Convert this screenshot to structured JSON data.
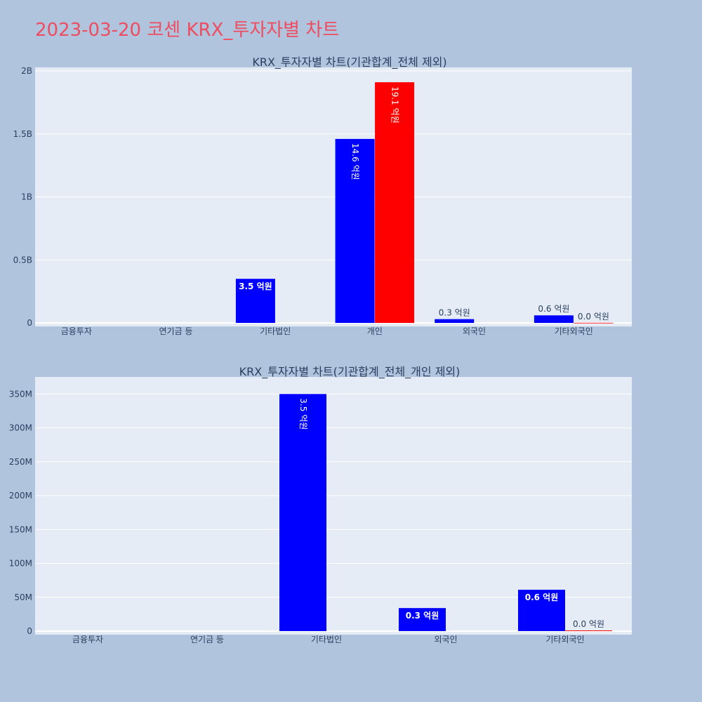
{
  "page": {
    "title": "2023-03-20 코센 KRX_투자자별 차트"
  },
  "colors": {
    "background": "#b0c4de",
    "plot_bg": "#e5ecf6",
    "grid": "#ffffff",
    "buy": "#0000ff",
    "sell": "#ff0000",
    "title": "#ef4d5f",
    "text": "#2a3f5f"
  },
  "chart_data": [
    {
      "type": "bar",
      "title": "KRX_투자자별 차트(기관합계_전체 제외)",
      "categories": [
        "금융투자",
        "연기금 등",
        "기타법인",
        "개인",
        "외국인",
        "기타외국인"
      ],
      "ylim": [
        0,
        2000000000
      ],
      "yticks": [
        0,
        500000000,
        1000000000,
        1500000000,
        2000000000
      ],
      "yticklabels": [
        "0",
        "0.5B",
        "1B",
        "1.5B",
        "2B"
      ],
      "grid": true,
      "series": [
        {
          "color": "#0000ff",
          "values": [
            0,
            0,
            350000000,
            1460000000,
            30000000,
            60000000
          ],
          "labels": [
            "",
            "",
            "3.5 억원",
            "14.6 억원",
            "0.3 억원",
            "0.6 억원"
          ]
        },
        {
          "color": "#ff0000",
          "values": [
            0,
            0,
            0,
            1910000000,
            0,
            1000000
          ],
          "labels": [
            "",
            "",
            "",
            "19.1 억원",
            "",
            "0.0 억원"
          ]
        }
      ]
    },
    {
      "type": "bar",
      "title": "KRX_투자자별 차트(기관합계_전체_개인 제외)",
      "categories": [
        "금융투자",
        "연기금 등",
        "기타법인",
        "외국인",
        "기타외국인"
      ],
      "ylim": [
        0,
        370000000
      ],
      "yticks": [
        0,
        50000000,
        100000000,
        150000000,
        200000000,
        250000000,
        300000000,
        350000000
      ],
      "yticklabels": [
        "0",
        "50M",
        "100M",
        "150M",
        "200M",
        "250M",
        "300M",
        "350M"
      ],
      "grid": true,
      "series": [
        {
          "color": "#0000ff",
          "values": [
            0,
            0,
            350000000,
            34000000,
            61000000
          ],
          "labels": [
            "",
            "",
            "3.5 억원",
            "0.3 억원",
            "0.6 억원"
          ]
        },
        {
          "color": "#ff0000",
          "values": [
            0,
            0,
            0,
            0,
            1000000
          ],
          "labels": [
            "",
            "",
            "",
            "",
            "0.0 억원"
          ]
        }
      ]
    }
  ]
}
